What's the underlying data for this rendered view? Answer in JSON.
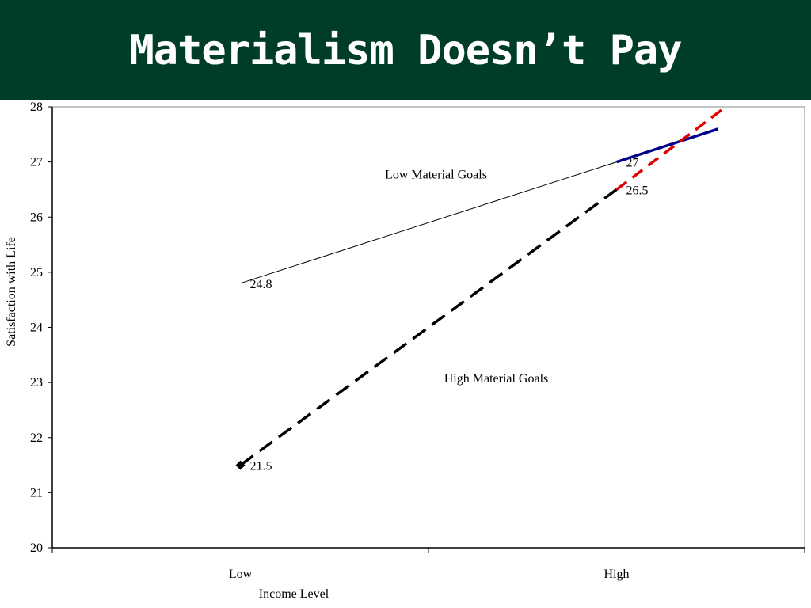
{
  "slide": {
    "title": "Materialism Doesn’t Pay",
    "colors": {
      "title_background": "#003d28",
      "title_text": "#ffffff"
    }
  },
  "chart_data": {
    "type": "line",
    "xlabel": "Income Level",
    "ylabel": "Satisfaction with Life",
    "categories": [
      "Low",
      "High"
    ],
    "ylim": [
      20,
      28
    ],
    "yticks": [
      20,
      21,
      22,
      23,
      24,
      25,
      26,
      27,
      28
    ],
    "grid": false,
    "series": [
      {
        "name": "Low Material Goals",
        "values": [
          24.8,
          27
        ],
        "data_labels": [
          "24.8",
          "27"
        ],
        "color": "#000000",
        "style": "solid-thin"
      },
      {
        "name": "High Material Goals",
        "values": [
          21.5,
          26.5
        ],
        "data_labels": [
          "21.5",
          "26.5"
        ],
        "color": "#000000",
        "style": "dashed",
        "marker": "diamond"
      }
    ],
    "overlays": [
      {
        "label": "blue extension of Low Material Goals trend",
        "color": "#00008b",
        "style": "solid",
        "points": [
          [
            1,
            27.0
          ],
          [
            1.27,
            27.6
          ]
        ]
      },
      {
        "label": "red extension of High Material Goals trend",
        "color": "#e00000",
        "style": "dashed",
        "points": [
          [
            1,
            26.5
          ],
          [
            1.29,
            28.0
          ]
        ]
      }
    ]
  }
}
